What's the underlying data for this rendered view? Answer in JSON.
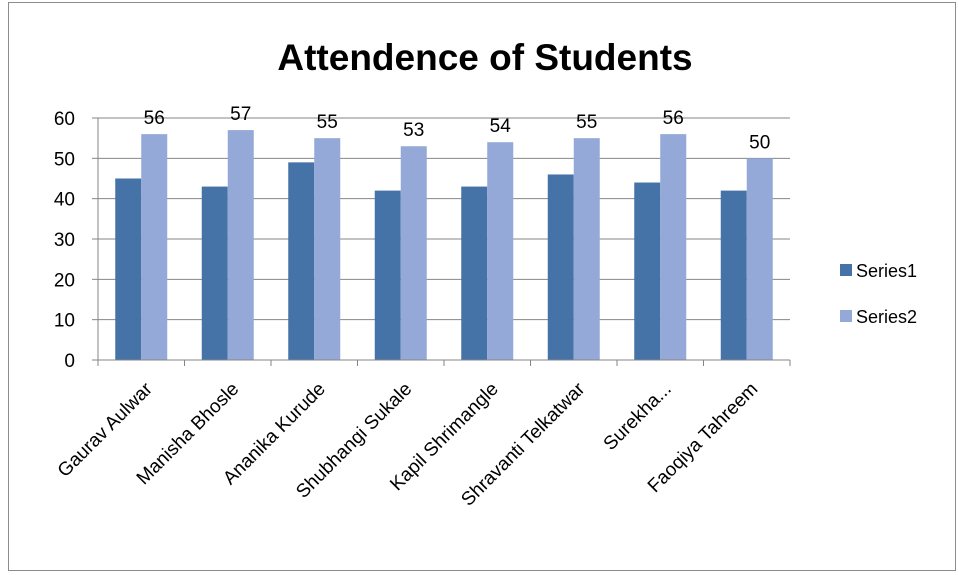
{
  "chart_data": {
    "type": "bar",
    "title": "Attendence of Students",
    "xlabel": "",
    "ylabel": "",
    "ylim": [
      0,
      60
    ],
    "yticks": [
      0,
      10,
      20,
      30,
      40,
      50,
      60
    ],
    "grid": true,
    "legend_position": "right",
    "categories": [
      "Gaurav Aulwar",
      "Manisha Bhosle",
      "Ananika Kurude",
      "Shubhangi Sukale",
      "Kapil Shrimangle",
      "Shravanti Telkatwar",
      "Surekha...",
      "Faoqiya Tahreem"
    ],
    "series": [
      {
        "name": "Series1",
        "color": "#4572A7",
        "values": [
          45,
          43,
          49,
          42,
          43,
          46,
          44,
          42
        ],
        "show_labels": false
      },
      {
        "name": "Series2",
        "color": "#94A9D7",
        "values": [
          56,
          57,
          55,
          53,
          54,
          55,
          56,
          50
        ],
        "show_labels": true
      }
    ]
  }
}
